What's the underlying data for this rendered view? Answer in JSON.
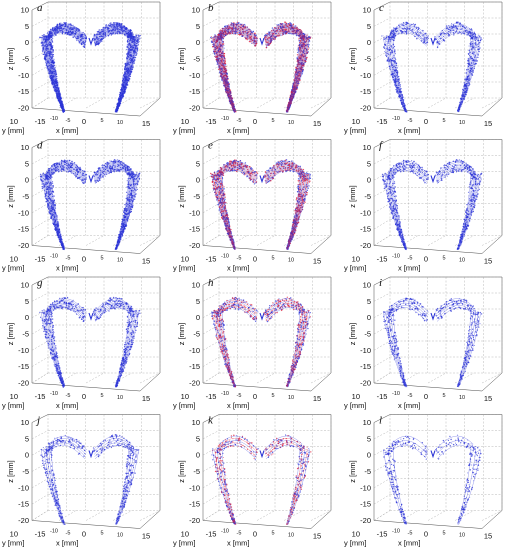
{
  "colors": {
    "blue": "#2b33d6",
    "red": "#e0203a",
    "grid": "#9a9a9a",
    "box": "#4a4a4a"
  },
  "axes": {
    "z_label": "z [mm]",
    "y_label": "y [mm]",
    "x_label": "x [mm]",
    "z_ticks": [
      "10",
      "5",
      "0",
      "-5",
      "-10",
      "-15",
      "-20"
    ],
    "y_ticks": [
      "10",
      "-15"
    ],
    "x_ticks_major": [
      "0",
      "15"
    ],
    "x_ticks_minor": [
      "-10",
      "-5",
      "5",
      "10"
    ]
  },
  "chart_data": {
    "type": "scatter",
    "layout": "4x3 grid of 3D point-cloud panels",
    "xlim": [
      -15,
      15
    ],
    "ylim": [
      -15,
      10
    ],
    "zlim": [
      -20,
      10
    ],
    "grid": true,
    "panels": [
      {
        "label": "a",
        "colors": [
          "blue"
        ],
        "density": "very high"
      },
      {
        "label": "b",
        "colors": [
          "blue",
          "red"
        ],
        "density": "very high"
      },
      {
        "label": "c",
        "colors": [
          "blue"
        ],
        "density": "medium"
      },
      {
        "label": "d",
        "colors": [
          "blue"
        ],
        "density": "high"
      },
      {
        "label": "e",
        "colors": [
          "blue",
          "red"
        ],
        "density": "high"
      },
      {
        "label": "f",
        "colors": [
          "blue"
        ],
        "density": "medium"
      },
      {
        "label": "g",
        "colors": [
          "blue"
        ],
        "density": "medium"
      },
      {
        "label": "h",
        "colors": [
          "blue",
          "red"
        ],
        "density": "medium"
      },
      {
        "label": "i",
        "colors": [
          "blue"
        ],
        "density": "low"
      },
      {
        "label": "j",
        "colors": [
          "blue"
        ],
        "density": "low"
      },
      {
        "label": "k",
        "colors": [
          "blue",
          "red"
        ],
        "density": "low"
      },
      {
        "label": "l",
        "colors": [
          "blue"
        ],
        "density": "very low"
      }
    ]
  }
}
